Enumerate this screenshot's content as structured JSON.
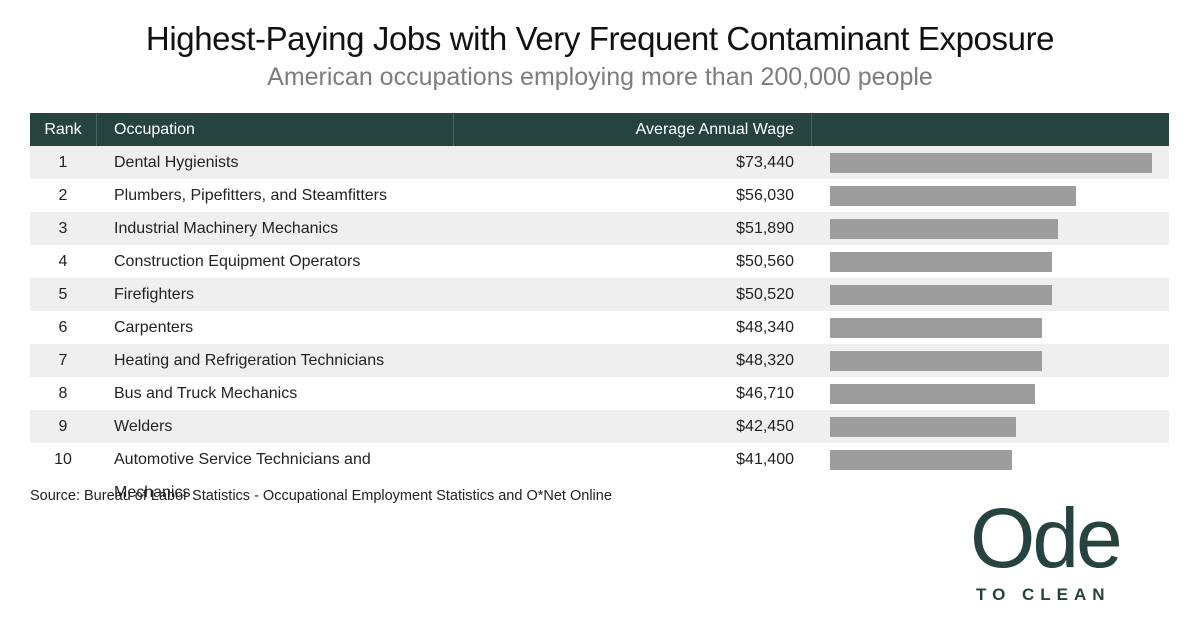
{
  "title": "Highest-Paying Jobs with Very Frequent Contaminant Exposure",
  "subtitle": "American occupations employing more than 200,000 people",
  "headers": {
    "rank": "Rank",
    "occupation": "Occupation",
    "wage": "Average Annual Wage"
  },
  "source": "Source: Bureau of Labor Statistics - Occupational Employment Statistics and O*Net Online",
  "logo": {
    "word": "Ode",
    "tagline": "TO CLEAN"
  },
  "colors": {
    "header_bg": "#27433f",
    "bar": "#9d9d9d",
    "stripe": "#efefef",
    "logo": "#27433f"
  },
  "chart_data": {
    "type": "bar",
    "title": "Highest-Paying Jobs with Very Frequent Contaminant Exposure",
    "subtitle": "American occupations employing more than 200,000 people",
    "columns": [
      "Rank",
      "Occupation",
      "Average Annual Wage"
    ],
    "rows": [
      {
        "rank": "1",
        "occupation": "Dental Hygienists",
        "wage_label": "$73,440",
        "wage": 73440
      },
      {
        "rank": "2",
        "occupation": "Plumbers, Pipefitters, and Steamfitters",
        "wage_label": "$56,030",
        "wage": 56030
      },
      {
        "rank": "3",
        "occupation": "Industrial Machinery Mechanics",
        "wage_label": "$51,890",
        "wage": 51890
      },
      {
        "rank": "4",
        "occupation": "Construction Equipment Operators",
        "wage_label": "$50,560",
        "wage": 50560
      },
      {
        "rank": "5",
        "occupation": "Firefighters",
        "wage_label": "$50,520",
        "wage": 50520
      },
      {
        "rank": "6",
        "occupation": "Carpenters",
        "wage_label": "$48,340",
        "wage": 48340
      },
      {
        "rank": "7",
        "occupation": "Heating and Refrigeration Technicians",
        "wage_label": "$48,320",
        "wage": 48320
      },
      {
        "rank": "8",
        "occupation": "Bus and Truck Mechanics",
        "wage_label": "$46,710",
        "wage": 46710
      },
      {
        "rank": "9",
        "occupation": "Welders",
        "wage_label": "$42,450",
        "wage": 42450
      },
      {
        "rank": "10",
        "occupation": "Automotive Service Technicians and Mechanics",
        "wage_label": "$41,400",
        "wage": 41400
      }
    ],
    "xlim": [
      0,
      73440
    ]
  }
}
